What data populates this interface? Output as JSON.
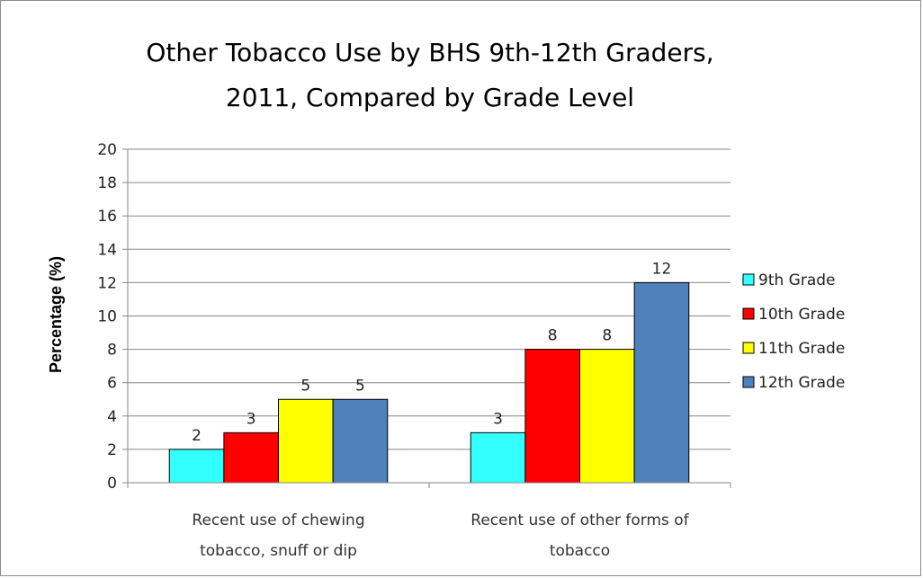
{
  "chart_data": {
    "type": "bar",
    "title_lines": [
      "Other Tobacco Use by BHS 9th-12th Graders,",
      "2011, Compared by Grade Level"
    ],
    "ylabel": "Percentage (%)",
    "xlabel": "",
    "ylim": [
      0,
      20
    ],
    "yticks": [
      0,
      2,
      4,
      6,
      8,
      10,
      12,
      14,
      16,
      18,
      20
    ],
    "grid": true,
    "legend_position": "right",
    "categories": [
      [
        "Recent use of chewing",
        "tobacco, snuff or dip"
      ],
      [
        "Recent use of other forms of",
        "tobacco"
      ]
    ],
    "series": [
      {
        "name": "9th Grade",
        "color": "#33ffff",
        "values": [
          2,
          3
        ]
      },
      {
        "name": "10th Grade",
        "color": "#ff0000",
        "values": [
          3,
          8
        ]
      },
      {
        "name": "11th Grade",
        "color": "#ffff00",
        "values": [
          5,
          8
        ]
      },
      {
        "name": "12th Grade",
        "color": "#4f81bd",
        "values": [
          5,
          12
        ]
      }
    ]
  }
}
